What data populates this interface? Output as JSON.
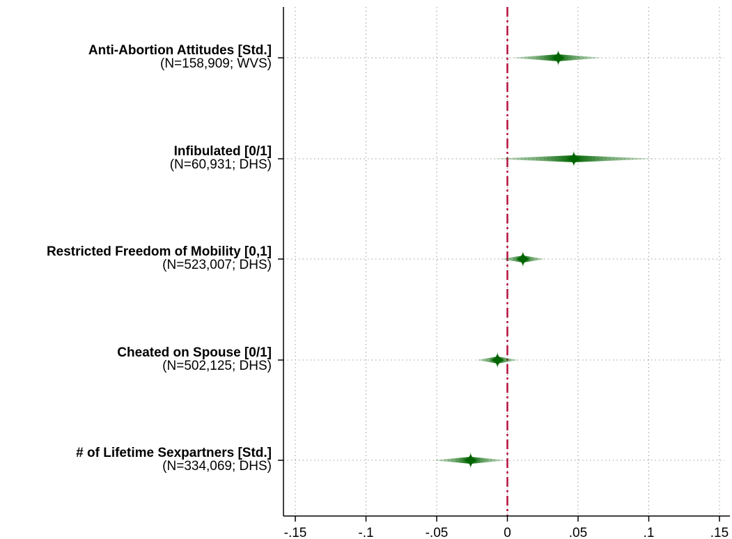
{
  "chart_data": {
    "type": "coefficient-plot",
    "title": "",
    "xlabel": "",
    "ylabel": "",
    "xlim": [
      -0.16,
      0.16
    ],
    "xticks": [
      -0.15,
      -0.1,
      -0.05,
      0,
      0.05,
      0.1,
      0.15
    ],
    "xtick_labels": [
      "-.15",
      "-.1",
      "-.05",
      "0",
      ".05",
      ".1",
      ".15"
    ],
    "reference_line": 0,
    "grid": true,
    "colors": {
      "estimate": "#006400",
      "reference": "#b5103c",
      "axis": "#000000",
      "grid": "#9a9a9a"
    },
    "rows": [
      {
        "label": "Anti-Abortion Attitudes [Std.]",
        "sublabel": "(N=158,909; WVS)",
        "estimate": 0.036,
        "ci": [
          0.002,
          0.068
        ]
      },
      {
        "label": "Infibulated [0/1]",
        "sublabel": "(N=60,931; DHS)",
        "estimate": 0.047,
        "ci": [
          -0.012,
          0.106
        ]
      },
      {
        "label": "Restricted Freedom of Mobility [0,1]",
        "sublabel": "(N=523,007; DHS)",
        "estimate": 0.011,
        "ci": [
          -0.005,
          0.027
        ]
      },
      {
        "label": "Cheated on Spouse [0/1]",
        "sublabel": "(N=502,125; DHS)",
        "estimate": -0.007,
        "ci": [
          -0.022,
          0.008
        ]
      },
      {
        "label": "# of Lifetime Sexpartners [Std.]",
        "sublabel": "(N=334,069; DHS)",
        "estimate": -0.026,
        "ci": [
          -0.053,
          0.0
        ]
      }
    ]
  }
}
